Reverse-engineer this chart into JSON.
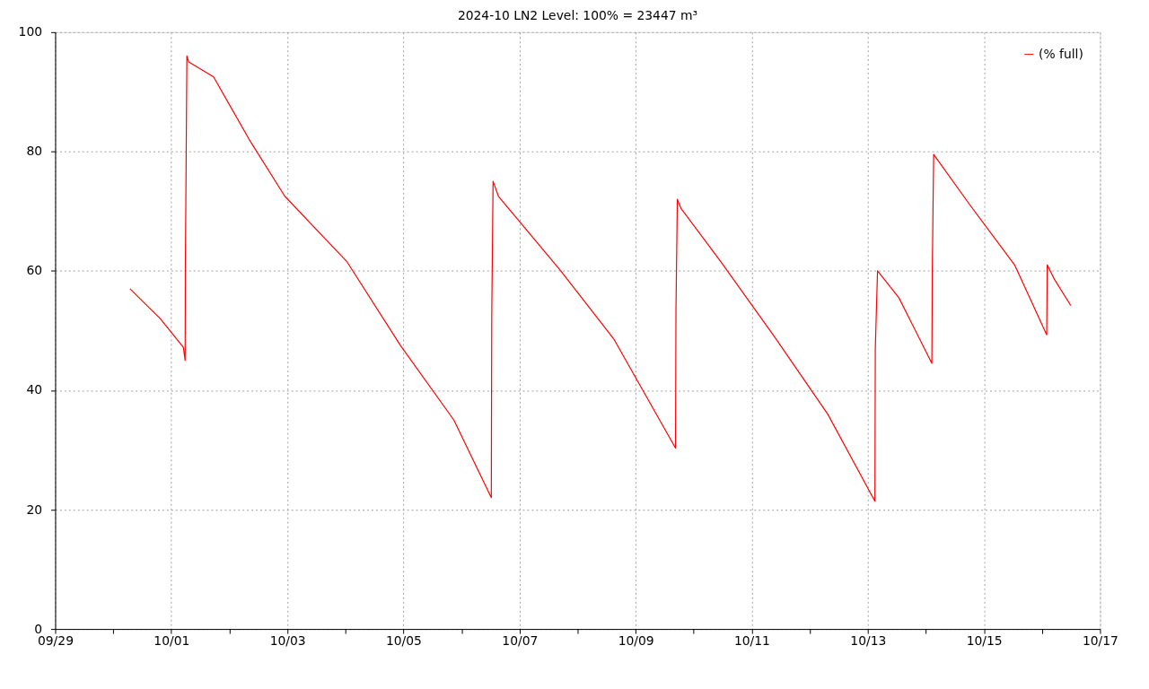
{
  "chart_data": {
    "type": "line",
    "title": "2024-10 LN2 Level: 100% = 23447 m³",
    "x": [
      "2024-09-30T06:55",
      "2024-09-30T19:25",
      "2024-10-01T05:00",
      "2024-10-01T05:44",
      "2024-10-01T05:50",
      "2024-10-01T06:27",
      "2024-10-01T07:12",
      "2024-10-01T17:30",
      "2024-10-02T08:14",
      "2024-10-02T22:57",
      "2024-10-04T00:42",
      "2024-10-04T22:46",
      "2024-10-05T20:51",
      "2024-10-06T12:19",
      "2024-10-06T12:30",
      "2024-10-06T13:03",
      "2024-10-06T15:16",
      "2024-10-07T17:01",
      "2024-10-08T15:06",
      "2024-10-09T16:29",
      "2024-10-09T16:40",
      "2024-10-09T17:14",
      "2024-10-09T18:42",
      "2024-10-10T11:15",
      "2024-10-11T09:20",
      "2024-10-12T07:25",
      "2024-10-13T02:55",
      "2024-10-13T03:05",
      "2024-10-13T04:00",
      "2024-10-13T12:50",
      "2024-10-14T02:28",
      "2024-10-14T02:40",
      "2024-10-14T03:12",
      "2024-10-14T18:17",
      "2024-10-15T12:41",
      "2024-10-16T01:57",
      "2024-10-16T02:10",
      "2024-10-16T05:15",
      "2024-10-16T11:53"
    ],
    "series": [
      {
        "name": "(% full)",
        "color": "#ff0000",
        "values": [
          57.0,
          52.0,
          47.2,
          45.0,
          60.8,
          96.0,
          95.0,
          92.5,
          82.0,
          72.5,
          61.5,
          47.5,
          35.0,
          22.0,
          52.5,
          75.0,
          72.5,
          60.0,
          48.5,
          30.3,
          53.5,
          72.0,
          70.5,
          61.5,
          49.0,
          36.0,
          21.4,
          47.0,
          60.0,
          55.5,
          44.5,
          61.0,
          79.5,
          71.0,
          61.0,
          49.3,
          61.0,
          58.5,
          54.2
        ]
      }
    ],
    "xlim": [
      "2024-09-29",
      "2024-10-17"
    ],
    "xticks": [
      {
        "value": "2024-09-29",
        "label": "09/29"
      },
      {
        "value": "2024-09-30",
        "label": null
      },
      {
        "value": "2024-10-01",
        "label": "10/01"
      },
      {
        "value": "2024-10-02",
        "label": null
      },
      {
        "value": "2024-10-03",
        "label": "10/03"
      },
      {
        "value": "2024-10-04",
        "label": null
      },
      {
        "value": "2024-10-05",
        "label": "10/05"
      },
      {
        "value": "2024-10-06",
        "label": null
      },
      {
        "value": "2024-10-07",
        "label": "10/07"
      },
      {
        "value": "2024-10-08",
        "label": null
      },
      {
        "value": "2024-10-09",
        "label": "10/09"
      },
      {
        "value": "2024-10-10",
        "label": null
      },
      {
        "value": "2024-10-11",
        "label": "10/11"
      },
      {
        "value": "2024-10-12",
        "label": null
      },
      {
        "value": "2024-10-13",
        "label": "10/13"
      },
      {
        "value": "2024-10-14",
        "label": null
      },
      {
        "value": "2024-10-15",
        "label": "10/15"
      },
      {
        "value": "2024-10-16",
        "label": null
      },
      {
        "value": "2024-10-17",
        "label": "10/17"
      }
    ],
    "ylim": [
      0,
      100
    ],
    "yticks": [
      0,
      20,
      40,
      60,
      80,
      100
    ],
    "grid": true,
    "legend": "top right",
    "line_style": "solid",
    "marker": "none"
  }
}
